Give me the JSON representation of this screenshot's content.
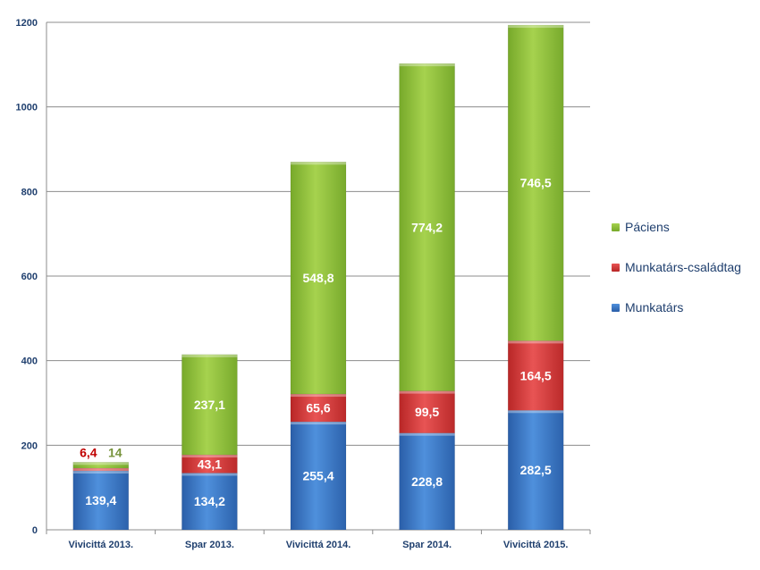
{
  "chart_data": {
    "type": "bar",
    "stacked": true,
    "categories": [
      "Vivicittá 2013.",
      "Spar 2013.",
      "Vivicittá 2014.",
      "Spar 2014.",
      "Vivicittá 2015."
    ],
    "series": [
      {
        "name": "Munkatárs",
        "color": "#3a78c8",
        "values": [
          139.4,
          134.2,
          255.4,
          228.8,
          282.5
        ],
        "labels": [
          "139,4",
          "134,2",
          "255,4",
          "228,8",
          "282,5"
        ]
      },
      {
        "name": "Munkatárs-családtag",
        "color": "#d83c3c",
        "values": [
          6.4,
          43.1,
          65.6,
          99.5,
          164.5
        ],
        "labels": [
          "6,4",
          "43,1",
          "65,6",
          "99,5",
          "164,5"
        ]
      },
      {
        "name": "Páciens",
        "color": "#8fbf3a",
        "values": [
          14,
          237.1,
          548.8,
          774.2,
          746.5
        ],
        "labels": [
          "14",
          "237,1",
          "548,8",
          "774,2",
          "746,5"
        ]
      }
    ],
    "legend_order": [
      "Páciens",
      "Munkatárs-családtag",
      "Munkatárs"
    ],
    "legend_position": "right",
    "y_ticks": [
      "0",
      "200",
      "400",
      "600",
      "800",
      "1000",
      "1200"
    ],
    "ylim": [
      0,
      1200
    ],
    "grid": true,
    "title": "",
    "xlabel": "",
    "ylabel": ""
  }
}
